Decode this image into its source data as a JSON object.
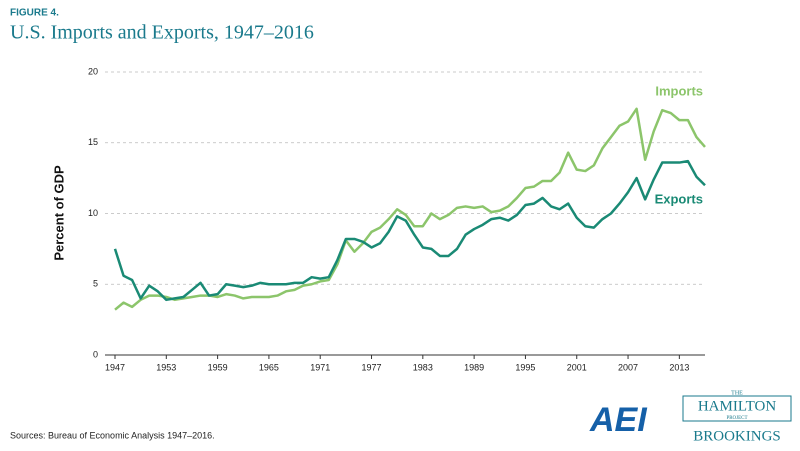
{
  "chart_data": {
    "type": "line",
    "figure_label": "FIGURE 4.",
    "title": "U.S. Imports and Exports, 1947–2016",
    "y_label": "Percent of GDP",
    "source": "Sources: Bureau of Economic Analysis 1947–2016.",
    "logos": [
      "AEI",
      "THE",
      "HAMILTON",
      "PROJECT",
      "BROOKINGS"
    ],
    "x": [
      1947,
      1948,
      1949,
      1950,
      1951,
      1952,
      1953,
      1954,
      1955,
      1956,
      1957,
      1958,
      1959,
      1960,
      1961,
      1962,
      1963,
      1964,
      1965,
      1966,
      1967,
      1968,
      1969,
      1970,
      1971,
      1972,
      1973,
      1974,
      1975,
      1976,
      1977,
      1978,
      1979,
      1980,
      1981,
      1982,
      1983,
      1984,
      1985,
      1986,
      1987,
      1988,
      1989,
      1990,
      1991,
      1992,
      1993,
      1994,
      1995,
      1996,
      1997,
      1998,
      1999,
      2000,
      2001,
      2002,
      2003,
      2004,
      2005,
      2006,
      2007,
      2008,
      2009,
      2010,
      2011,
      2012,
      2013,
      2014,
      2015,
      2016
    ],
    "xlim": [
      1947,
      2016
    ],
    "xticks": [
      1947,
      1953,
      1959,
      1965,
      1971,
      1977,
      1983,
      1989,
      1995,
      2001,
      2007,
      2013
    ],
    "ylim": [
      0,
      20
    ],
    "yticks": [
      0,
      5,
      10,
      15,
      20
    ],
    "grid": true,
    "series": [
      {
        "name": "Imports",
        "color": "#8cc56b",
        "values": [
          3.2,
          3.7,
          3.4,
          3.9,
          4.2,
          4.2,
          4.1,
          3.9,
          4.0,
          4.1,
          4.2,
          4.2,
          4.1,
          4.3,
          4.2,
          4.0,
          4.1,
          4.1,
          4.1,
          4.2,
          4.5,
          4.6,
          4.9,
          5.0,
          5.2,
          5.3,
          6.4,
          8.1,
          7.3,
          7.9,
          8.7,
          9.0,
          9.6,
          10.3,
          9.9,
          9.1,
          9.1,
          10.0,
          9.6,
          9.9,
          10.4,
          10.5,
          10.4,
          10.5,
          10.1,
          10.2,
          10.5,
          11.1,
          11.8,
          11.9,
          12.3,
          12.3,
          12.9,
          14.3,
          13.1,
          13.0,
          13.4,
          14.6,
          15.4,
          16.2,
          16.5,
          17.4,
          13.8,
          15.8,
          17.3,
          17.1,
          16.6,
          16.6,
          15.4,
          14.7
        ]
      },
      {
        "name": "Exports",
        "color": "#1a8a75",
        "values": [
          7.5,
          5.6,
          5.3,
          4.0,
          4.9,
          4.5,
          3.9,
          4.0,
          4.1,
          4.6,
          5.1,
          4.2,
          4.3,
          5.0,
          4.9,
          4.8,
          4.9,
          5.1,
          5.0,
          5.0,
          5.0,
          5.1,
          5.1,
          5.5,
          5.4,
          5.5,
          6.7,
          8.2,
          8.2,
          8.0,
          7.6,
          7.9,
          8.7,
          9.8,
          9.5,
          8.5,
          7.6,
          7.5,
          7.0,
          7.0,
          7.5,
          8.5,
          8.9,
          9.2,
          9.6,
          9.7,
          9.5,
          9.9,
          10.6,
          10.7,
          11.1,
          10.5,
          10.3,
          10.7,
          9.7,
          9.1,
          9.0,
          9.6,
          10.0,
          10.7,
          11.5,
          12.5,
          11.0,
          12.4,
          13.6,
          13.6,
          13.6,
          13.7,
          12.6,
          12.0
        ]
      }
    ]
  }
}
